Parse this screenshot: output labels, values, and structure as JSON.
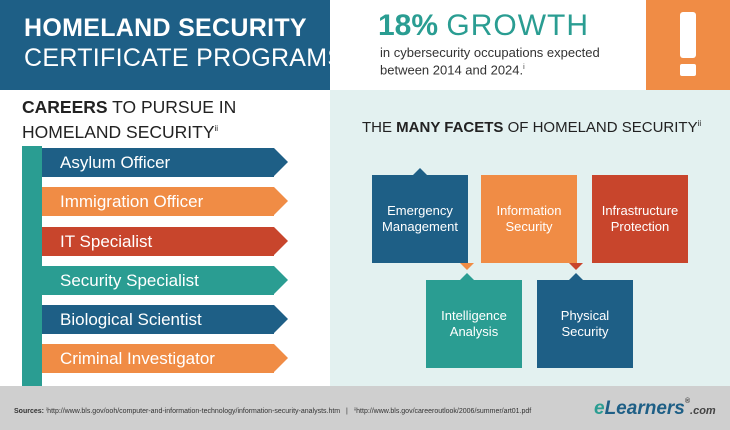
{
  "header": {
    "title_line1": "HOMELAND SECURITY",
    "title_line2": "CERTIFICATE PROGRAMS"
  },
  "stat": {
    "percent": "18%",
    "word": "GROWTH",
    "description": "in cybersecurity occupations expected between 2014 and 2024.",
    "note": "i",
    "alert_icon": "exclamation-icon"
  },
  "careers": {
    "heading_bold": "CAREERS",
    "heading_rest": " TO PURSUE IN",
    "heading_line2": "HOMELAND SECURITY",
    "note": "ii",
    "items": [
      {
        "label": "Asylum Officer",
        "color": "#1e5f86"
      },
      {
        "label": "Immigration Officer",
        "color": "#f08c45"
      },
      {
        "label": "IT Specialist",
        "color": "#c8452c"
      },
      {
        "label": "Security Specialist",
        "color": "#2a9d92"
      },
      {
        "label": "Biological Scientist",
        "color": "#1e5f86"
      },
      {
        "label": "Criminal Investigator",
        "color": "#f08c45"
      }
    ]
  },
  "facets": {
    "heading_pre": "THE ",
    "heading_bold": "MANY FACETS",
    "heading_post": " OF HOMELAND SECURITY",
    "note": "ii",
    "items": [
      {
        "label": "Emergency\nManagement",
        "color": "#1e5f86"
      },
      {
        "label": "Information\nSecurity",
        "color": "#f08c45"
      },
      {
        "label": "Infrastructure\nProtection",
        "color": "#c8452c"
      },
      {
        "label": "Intelligence\nAnalysis",
        "color": "#2a9d92"
      },
      {
        "label": "Physical\nSecurity",
        "color": "#1e5f86"
      }
    ]
  },
  "footer": {
    "sources_label": "Sources:",
    "source1": "ⁱhttp://www.bls.gov/ooh/computer-and-information-technology/information-security-analysts.htm",
    "separator": "|",
    "source2": "ⁱⁱhttp://www.bls.gov/careeroutlook/2006/summer/art01.pdf",
    "logo_e": "e",
    "logo_rest": "Learners",
    "logo_reg": "®",
    "logo_com": ".com"
  },
  "colors": {
    "navy": "#1e5f86",
    "teal": "#2a9d92",
    "orange": "#f08c45",
    "red": "#c8452c",
    "panel": "#e3f1f0"
  }
}
